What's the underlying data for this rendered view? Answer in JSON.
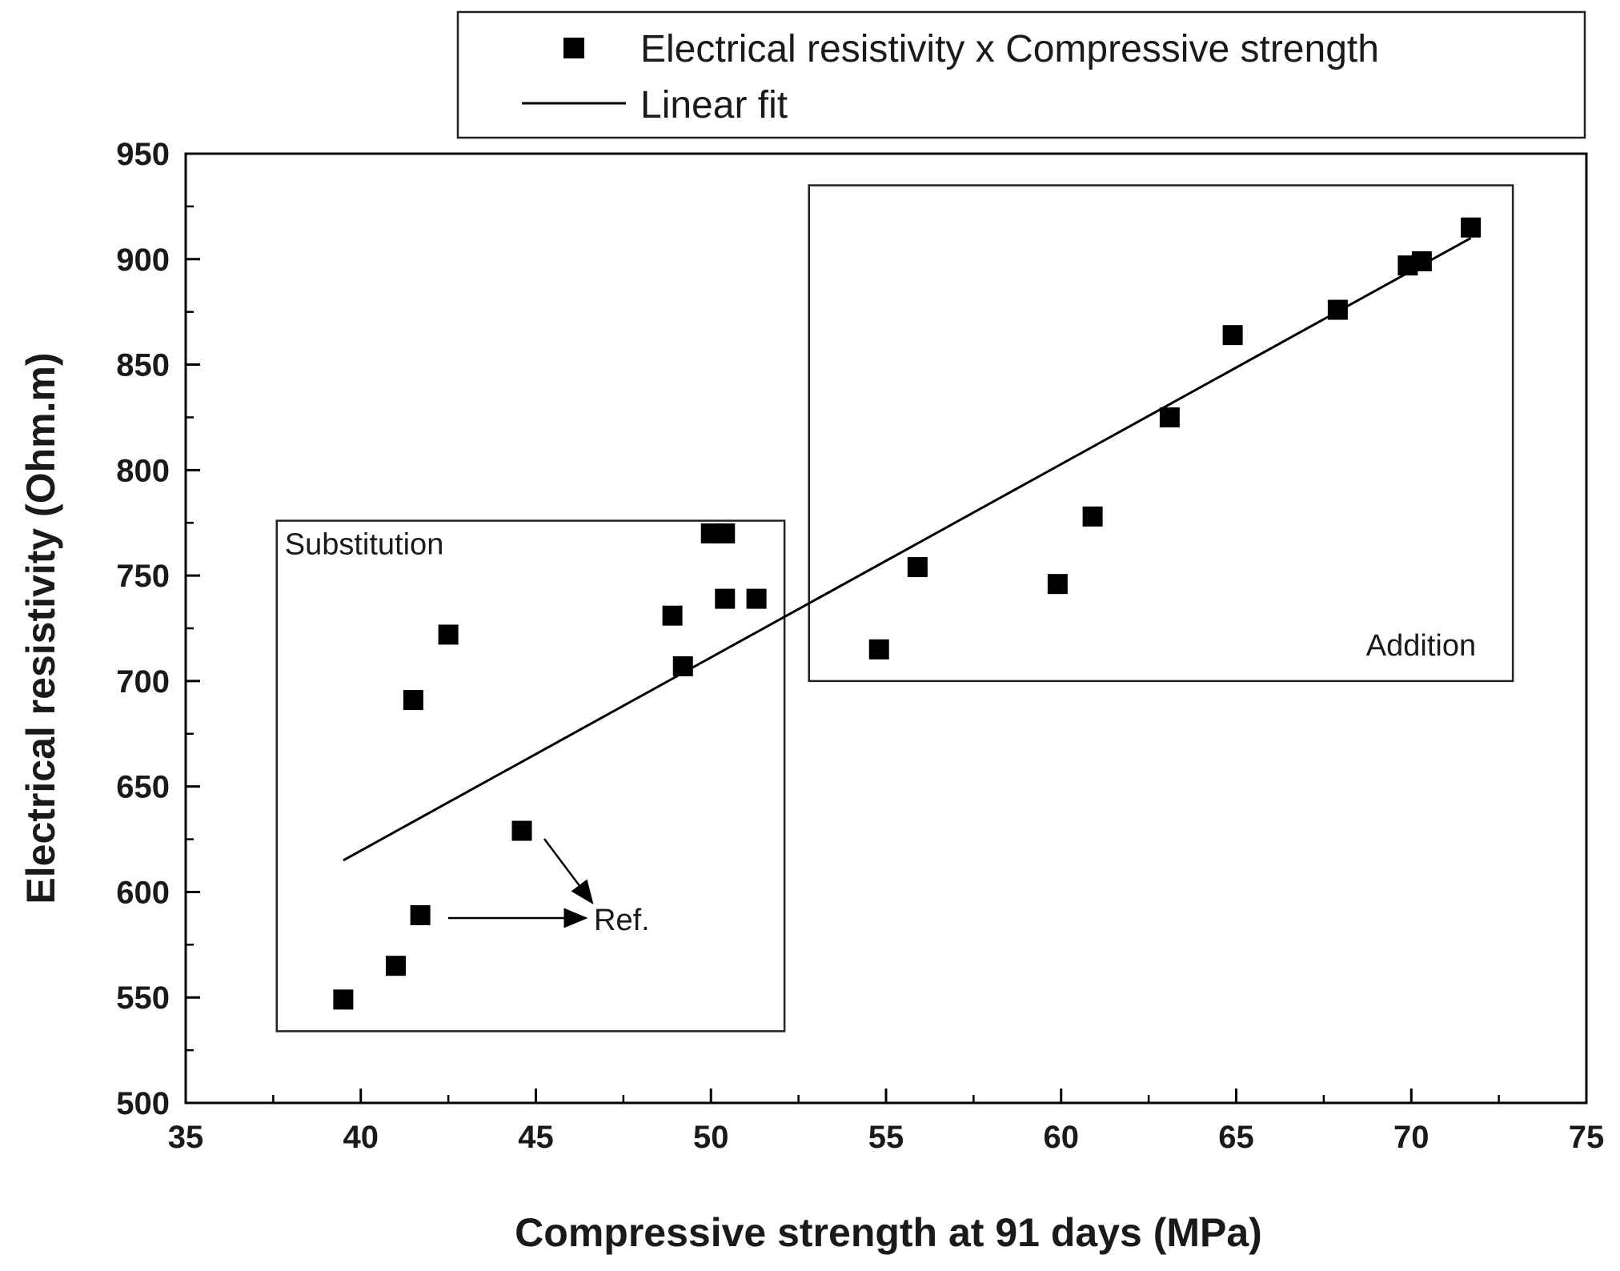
{
  "chart_data": {
    "type": "scatter",
    "title": "",
    "xlabel": "Compressive strength at 91 days (MPa)",
    "ylabel": "Electrical resistivity (Ohm.m)",
    "xlim": [
      35,
      75
    ],
    "ylim": [
      500,
      950
    ],
    "xticks": [
      35,
      40,
      45,
      50,
      55,
      60,
      65,
      70,
      75
    ],
    "yticks": [
      500,
      550,
      600,
      650,
      700,
      750,
      800,
      850,
      900,
      950
    ],
    "grid": false,
    "legend_position": "top",
    "legend": {
      "points_label": "Electrical resistivity x Compressive strength",
      "fit_label": "Linear fit"
    },
    "series": [
      {
        "name": "Electrical resistivity x Compressive strength",
        "points": [
          {
            "x": 39.5,
            "y": 549
          },
          {
            "x": 41.0,
            "y": 565
          },
          {
            "x": 41.7,
            "y": 589
          },
          {
            "x": 41.5,
            "y": 691
          },
          {
            "x": 42.5,
            "y": 722
          },
          {
            "x": 44.6,
            "y": 629
          },
          {
            "x": 48.9,
            "y": 731
          },
          {
            "x": 49.2,
            "y": 707
          },
          {
            "x": 50.0,
            "y": 770
          },
          {
            "x": 50.4,
            "y": 770
          },
          {
            "x": 50.4,
            "y": 739
          },
          {
            "x": 51.3,
            "y": 739
          },
          {
            "x": 54.8,
            "y": 715
          },
          {
            "x": 55.9,
            "y": 754
          },
          {
            "x": 59.9,
            "y": 746
          },
          {
            "x": 60.9,
            "y": 778
          },
          {
            "x": 63.1,
            "y": 825
          },
          {
            "x": 64.9,
            "y": 864
          },
          {
            "x": 67.9,
            "y": 876
          },
          {
            "x": 69.9,
            "y": 897
          },
          {
            "x": 70.3,
            "y": 899
          },
          {
            "x": 71.7,
            "y": 915
          }
        ]
      }
    ],
    "fit_line": {
      "name": "Linear fit",
      "x": [
        39.5,
        71.7
      ],
      "y": [
        615,
        910
      ]
    },
    "regions": [
      {
        "label": "Substitution",
        "x": [
          37.6,
          52.1
        ],
        "y": [
          534,
          776
        ]
      },
      {
        "label": "Addition",
        "x": [
          52.8,
          72.9
        ],
        "y": [
          700,
          935
        ]
      }
    ],
    "annotations": [
      {
        "label": "Ref."
      }
    ]
  }
}
